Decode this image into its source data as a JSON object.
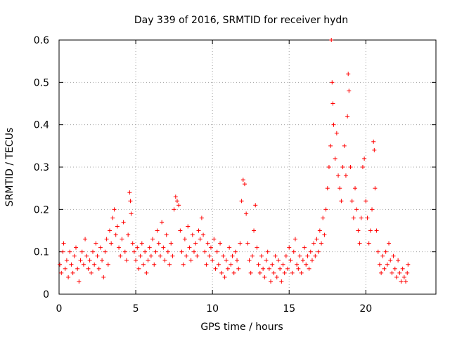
{
  "chart_data": {
    "type": "scatter",
    "title": "Day 339 of 2016, SRMTID for receiver hydn",
    "xlabel": "GPS time / hours",
    "ylabel": "SRMTID / TECUs",
    "xlim": [
      0,
      24.57
    ],
    "ylim": [
      0,
      0.6
    ],
    "x_ticks": [
      "0",
      "5",
      "10",
      "15",
      "20"
    ],
    "x_tick_values": [
      0,
      5,
      10,
      15,
      20
    ],
    "y_ticks": [
      "0",
      "0.1",
      "0.2",
      "0.3",
      "0.4",
      "0.5",
      "0.6"
    ],
    "y_tick_values": [
      0,
      0.1,
      0.2,
      0.3,
      0.4,
      0.5,
      0.6
    ],
    "grid": true,
    "marker": "+",
    "marker_color": "#ff0000",
    "series": [
      {
        "name": "SRMTID",
        "points": [
          [
            0.05,
            0.07
          ],
          [
            0.15,
            0.05
          ],
          [
            0.25,
            0.1
          ],
          [
            0.3,
            0.12
          ],
          [
            0.4,
            0.06
          ],
          [
            0.5,
            0.08
          ],
          [
            0.6,
            0.04
          ],
          [
            0.7,
            0.1
          ],
          [
            0.8,
            0.07
          ],
          [
            0.9,
            0.05
          ],
          [
            1.0,
            0.09
          ],
          [
            1.1,
            0.11
          ],
          [
            1.2,
            0.06
          ],
          [
            1.3,
            0.03
          ],
          [
            1.4,
            0.08
          ],
          [
            1.5,
            0.1
          ],
          [
            1.6,
            0.07
          ],
          [
            1.7,
            0.13
          ],
          [
            1.8,
            0.09
          ],
          [
            1.9,
            0.06
          ],
          [
            2.0,
            0.08
          ],
          [
            2.1,
            0.05
          ],
          [
            2.2,
            0.1
          ],
          [
            2.3,
            0.07
          ],
          [
            2.4,
            0.12
          ],
          [
            2.5,
            0.09
          ],
          [
            2.6,
            0.06
          ],
          [
            2.7,
            0.11
          ],
          [
            2.8,
            0.08
          ],
          [
            2.9,
            0.04
          ],
          [
            3.0,
            0.1
          ],
          [
            3.1,
            0.13
          ],
          [
            3.2,
            0.07
          ],
          [
            3.3,
            0.15
          ],
          [
            3.4,
            0.12
          ],
          [
            3.5,
            0.18
          ],
          [
            3.6,
            0.2
          ],
          [
            3.7,
            0.14
          ],
          [
            3.8,
            0.16
          ],
          [
            3.9,
            0.11
          ],
          [
            4.0,
            0.09
          ],
          [
            4.1,
            0.13
          ],
          [
            4.2,
            0.17
          ],
          [
            4.3,
            0.1
          ],
          [
            4.4,
            0.08
          ],
          [
            4.5,
            0.14
          ],
          [
            4.6,
            0.24
          ],
          [
            4.65,
            0.22
          ],
          [
            4.7,
            0.19
          ],
          [
            4.8,
            0.12
          ],
          [
            4.9,
            0.1
          ],
          [
            5.0,
            0.08
          ],
          [
            5.1,
            0.11
          ],
          [
            5.2,
            0.06
          ],
          [
            5.3,
            0.09
          ],
          [
            5.4,
            0.12
          ],
          [
            5.5,
            0.07
          ],
          [
            5.6,
            0.1
          ],
          [
            5.7,
            0.05
          ],
          [
            5.8,
            0.08
          ],
          [
            5.9,
            0.11
          ],
          [
            6.0,
            0.09
          ],
          [
            6.1,
            0.13
          ],
          [
            6.2,
            0.07
          ],
          [
            6.3,
            0.1
          ],
          [
            6.4,
            0.15
          ],
          [
            6.5,
            0.12
          ],
          [
            6.6,
            0.09
          ],
          [
            6.7,
            0.17
          ],
          [
            6.8,
            0.11
          ],
          [
            6.9,
            0.08
          ],
          [
            7.0,
            0.14
          ],
          [
            7.1,
            0.1
          ],
          [
            7.2,
            0.07
          ],
          [
            7.3,
            0.12
          ],
          [
            7.4,
            0.09
          ],
          [
            7.5,
            0.2
          ],
          [
            7.6,
            0.23
          ],
          [
            7.7,
            0.22
          ],
          [
            7.8,
            0.21
          ],
          [
            7.9,
            0.15
          ],
          [
            8.0,
            0.1
          ],
          [
            8.1,
            0.07
          ],
          [
            8.2,
            0.13
          ],
          [
            8.3,
            0.09
          ],
          [
            8.4,
            0.16
          ],
          [
            8.5,
            0.11
          ],
          [
            8.6,
            0.08
          ],
          [
            8.7,
            0.14
          ],
          [
            8.8,
            0.1
          ],
          [
            8.9,
            0.12
          ],
          [
            9.0,
            0.09
          ],
          [
            9.1,
            0.15
          ],
          [
            9.2,
            0.13
          ],
          [
            9.3,
            0.18
          ],
          [
            9.4,
            0.14
          ],
          [
            9.5,
            0.1
          ],
          [
            9.6,
            0.07
          ],
          [
            9.7,
            0.12
          ],
          [
            9.8,
            0.09
          ],
          [
            9.9,
            0.11
          ],
          [
            10.0,
            0.08
          ],
          [
            10.1,
            0.13
          ],
          [
            10.2,
            0.06
          ],
          [
            10.3,
            0.1
          ],
          [
            10.4,
            0.07
          ],
          [
            10.5,
            0.12
          ],
          [
            10.6,
            0.05
          ],
          [
            10.7,
            0.09
          ],
          [
            10.8,
            0.04
          ],
          [
            10.9,
            0.08
          ],
          [
            11.0,
            0.06
          ],
          [
            11.1,
            0.11
          ],
          [
            11.2,
            0.07
          ],
          [
            11.3,
            0.09
          ],
          [
            11.4,
            0.05
          ],
          [
            11.5,
            0.1
          ],
          [
            11.6,
            0.08
          ],
          [
            11.7,
            0.06
          ],
          [
            11.8,
            0.12
          ],
          [
            11.9,
            0.22
          ],
          [
            12.0,
            0.27
          ],
          [
            12.1,
            0.26
          ],
          [
            12.2,
            0.19
          ],
          [
            12.3,
            0.12
          ],
          [
            12.4,
            0.08
          ],
          [
            12.5,
            0.05
          ],
          [
            12.6,
            0.09
          ],
          [
            12.7,
            0.15
          ],
          [
            12.8,
            0.21
          ],
          [
            12.9,
            0.11
          ],
          [
            13.0,
            0.07
          ],
          [
            13.1,
            0.05
          ],
          [
            13.2,
            0.09
          ],
          [
            13.3,
            0.06
          ],
          [
            13.4,
            0.04
          ],
          [
            13.5,
            0.08
          ],
          [
            13.6,
            0.1
          ],
          [
            13.7,
            0.06
          ],
          [
            13.8,
            0.03
          ],
          [
            13.9,
            0.07
          ],
          [
            14.0,
            0.05
          ],
          [
            14.1,
            0.09
          ],
          [
            14.2,
            0.04
          ],
          [
            14.3,
            0.08
          ],
          [
            14.4,
            0.06
          ],
          [
            14.5,
            0.03
          ],
          [
            14.6,
            0.07
          ],
          [
            14.7,
            0.05
          ],
          [
            14.8,
            0.09
          ],
          [
            14.9,
            0.06
          ],
          [
            15.0,
            0.11
          ],
          [
            15.1,
            0.08
          ],
          [
            15.2,
            0.05
          ],
          [
            15.3,
            0.1
          ],
          [
            15.4,
            0.13
          ],
          [
            15.5,
            0.07
          ],
          [
            15.6,
            0.06
          ],
          [
            15.7,
            0.09
          ],
          [
            15.8,
            0.05
          ],
          [
            15.9,
            0.08
          ],
          [
            16.0,
            0.11
          ],
          [
            16.1,
            0.07
          ],
          [
            16.2,
            0.09
          ],
          [
            16.3,
            0.06
          ],
          [
            16.4,
            0.1
          ],
          [
            16.5,
            0.08
          ],
          [
            16.6,
            0.12
          ],
          [
            16.7,
            0.09
          ],
          [
            16.8,
            0.13
          ],
          [
            16.9,
            0.1
          ],
          [
            17.0,
            0.15
          ],
          [
            17.1,
            0.12
          ],
          [
            17.2,
            0.18
          ],
          [
            17.3,
            0.14
          ],
          [
            17.4,
            0.2
          ],
          [
            17.5,
            0.25
          ],
          [
            17.6,
            0.3
          ],
          [
            17.7,
            0.35
          ],
          [
            17.75,
            0.6
          ],
          [
            17.8,
            0.5
          ],
          [
            17.85,
            0.45
          ],
          [
            17.9,
            0.4
          ],
          [
            18.0,
            0.32
          ],
          [
            18.1,
            0.38
          ],
          [
            18.2,
            0.28
          ],
          [
            18.3,
            0.25
          ],
          [
            18.4,
            0.22
          ],
          [
            18.5,
            0.3
          ],
          [
            18.6,
            0.35
          ],
          [
            18.7,
            0.28
          ],
          [
            18.8,
            0.42
          ],
          [
            18.85,
            0.52
          ],
          [
            18.9,
            0.48
          ],
          [
            19.0,
            0.3
          ],
          [
            19.1,
            0.22
          ],
          [
            19.2,
            0.18
          ],
          [
            19.3,
            0.25
          ],
          [
            19.4,
            0.2
          ],
          [
            19.5,
            0.15
          ],
          [
            19.6,
            0.12
          ],
          [
            19.7,
            0.18
          ],
          [
            19.8,
            0.3
          ],
          [
            19.9,
            0.32
          ],
          [
            20.0,
            0.22
          ],
          [
            20.1,
            0.18
          ],
          [
            20.2,
            0.12
          ],
          [
            20.3,
            0.15
          ],
          [
            20.4,
            0.2
          ],
          [
            20.5,
            0.36
          ],
          [
            20.55,
            0.34
          ],
          [
            20.6,
            0.25
          ],
          [
            20.7,
            0.15
          ],
          [
            20.8,
            0.1
          ],
          [
            20.9,
            0.07
          ],
          [
            21.0,
            0.05
          ],
          [
            21.1,
            0.09
          ],
          [
            21.2,
            0.06
          ],
          [
            21.3,
            0.1
          ],
          [
            21.4,
            0.07
          ],
          [
            21.5,
            0.12
          ],
          [
            21.6,
            0.08
          ],
          [
            21.7,
            0.05
          ],
          [
            21.8,
            0.09
          ],
          [
            21.9,
            0.06
          ],
          [
            22.0,
            0.04
          ],
          [
            22.1,
            0.08
          ],
          [
            22.2,
            0.05
          ],
          [
            22.3,
            0.03
          ],
          [
            22.4,
            0.06
          ],
          [
            22.5,
            0.04
          ],
          [
            22.6,
            0.03
          ],
          [
            22.7,
            0.05
          ],
          [
            22.75,
            0.07
          ]
        ]
      }
    ]
  }
}
